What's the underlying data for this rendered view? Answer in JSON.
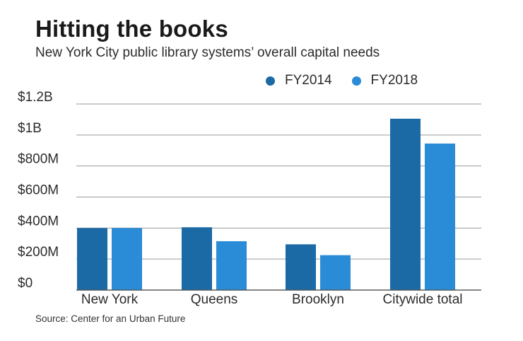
{
  "chart_data": {
    "type": "bar",
    "title": "Hitting the books",
    "subtitle": "New York City public library systems’ overall capital needs",
    "categories": [
      "New York",
      "Queens",
      "Brooklyn",
      "Citywide total"
    ],
    "series": [
      {
        "name": "FY2014",
        "color": "#1b6aa5",
        "values": [
          400,
          405,
          295,
          1105
        ]
      },
      {
        "name": "FY2018",
        "color": "#2a8bd6",
        "values": [
          400,
          315,
          225,
          945
        ]
      }
    ],
    "yunit": "millions of dollars",
    "ylim": [
      0,
      1200
    ],
    "yticks": [
      0,
      200,
      400,
      600,
      800,
      1000,
      1200
    ],
    "ytick_labels": [
      "$0",
      "$200M",
      "$400M",
      "$600M",
      "$800M",
      "$1B",
      "$1.2B"
    ],
    "grid": true,
    "legend_position": "top-right",
    "source": "Source: Center for an Urban Future"
  }
}
